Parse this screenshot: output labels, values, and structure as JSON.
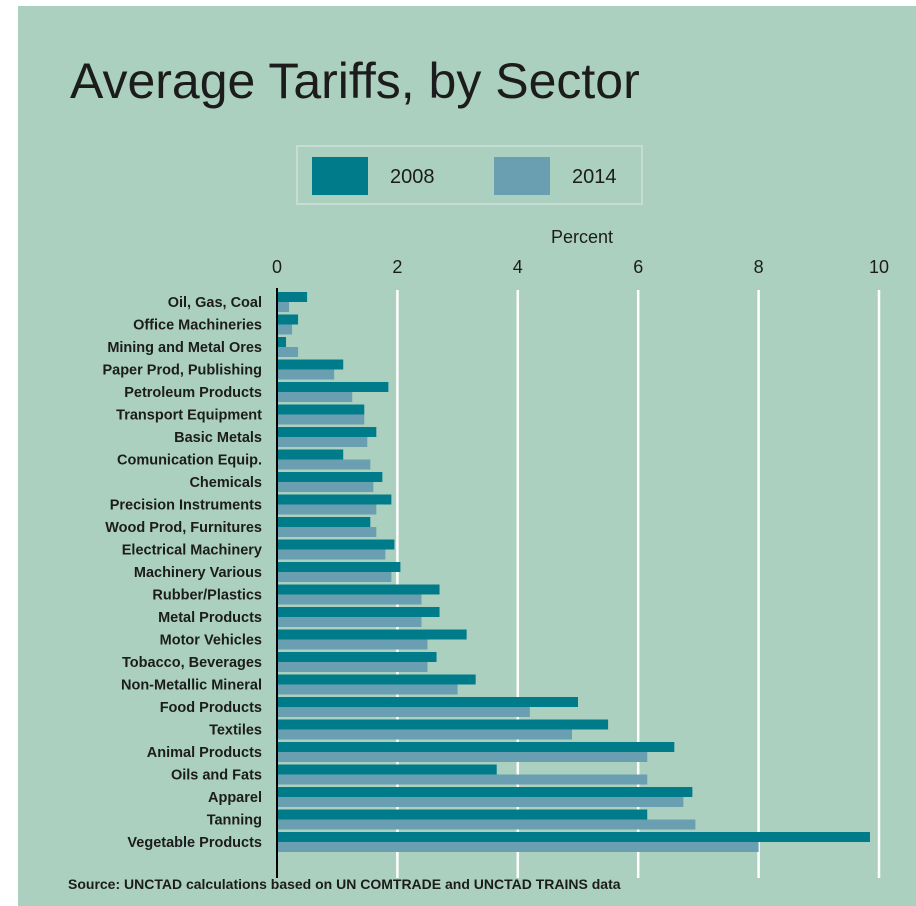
{
  "title": "Average Tariffs, by Sector",
  "source": "Source: UNCTAD calculations based on UN COMTRADE and UNCTAD TRAINS data",
  "colors": {
    "background": "#abd0bf",
    "series_2008": "#007b8a",
    "series_2014": "#6a9fb2",
    "grid": "#ffffff",
    "axis": "#000000"
  },
  "chart_data": {
    "type": "bar",
    "orientation": "horizontal",
    "title": "Average Tariffs, by Sector",
    "xlabel": "Percent",
    "ylabel": "",
    "xlim": [
      0,
      10
    ],
    "xticks": [
      0,
      2,
      4,
      6,
      8,
      10
    ],
    "grid": true,
    "legend_position": "top",
    "categories": [
      "Oil, Gas, Coal",
      "Office Machineries",
      "Mining and Metal Ores",
      "Paper Prod, Publishing",
      "Petroleum Products",
      "Transport Equipment",
      "Basic Metals",
      "Comunication Equip.",
      "Chemicals",
      "Precision Instruments",
      "Wood Prod, Furnitures",
      "Electrical Machinery",
      "Machinery Various",
      "Rubber/Plastics",
      "Metal Products",
      "Motor Vehicles",
      "Tobacco, Beverages",
      "Non-Metallic Mineral",
      "Food Products",
      "Textiles",
      "Animal Products",
      "Oils and Fats",
      "Apparel",
      "Tanning",
      "Vegetable Products"
    ],
    "series": [
      {
        "name": "2008",
        "color": "#007b8a",
        "values": [
          0.5,
          0.35,
          0.15,
          1.1,
          1.85,
          1.45,
          1.65,
          1.1,
          1.75,
          1.9,
          1.55,
          1.95,
          2.05,
          2.7,
          2.7,
          3.15,
          2.65,
          3.3,
          5.0,
          5.5,
          6.6,
          3.65,
          6.9,
          6.15,
          9.85
        ]
      },
      {
        "name": "2014",
        "color": "#6a9fb2",
        "values": [
          0.2,
          0.25,
          0.35,
          0.95,
          1.25,
          1.45,
          1.5,
          1.55,
          1.6,
          1.65,
          1.65,
          1.8,
          1.9,
          2.4,
          2.4,
          2.5,
          2.5,
          3.0,
          4.2,
          4.9,
          6.15,
          6.15,
          6.75,
          6.95,
          8.0
        ]
      }
    ]
  }
}
